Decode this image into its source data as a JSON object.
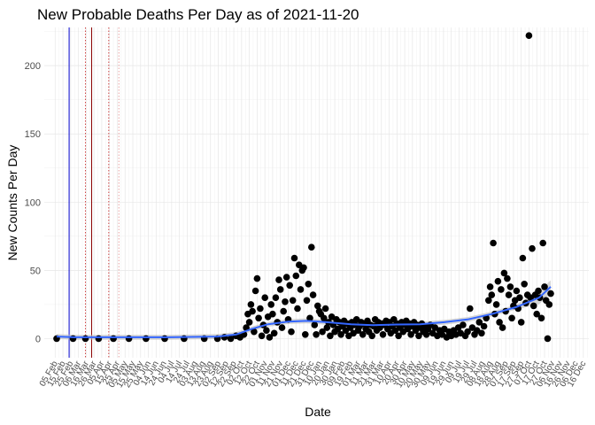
{
  "chart_data": {
    "type": "scatter",
    "title": "New Probable Deaths Per Day as of 2021-11-20",
    "xlabel": "Date",
    "ylabel": "New Counts Per Day",
    "ylim": [
      -14,
      228
    ],
    "yticks": [
      0,
      50,
      100,
      150,
      200
    ],
    "xlim": [
      "2020-01-22",
      "2021-12-23"
    ],
    "grid": true,
    "legend": "none",
    "colors": {
      "points": "#000000",
      "smooth": "#3366ff",
      "ribbon": "#bdbdbd",
      "vline_blue": "#0000cc",
      "vline_red": "#8b0000",
      "vline_dotted": "#cc4444"
    },
    "vlines": [
      {
        "date": "2020-02-23",
        "style": "solid",
        "color": "blue"
      },
      {
        "date": "2020-03-23",
        "style": "solid",
        "color": "red"
      },
      {
        "date": "2020-03-15",
        "style": "dotted",
        "color": "red"
      },
      {
        "date": "2020-04-14",
        "style": "dotted",
        "color": "red"
      },
      {
        "date": "2020-04-27",
        "style": "dotted",
        "color": "pink"
      }
    ],
    "x_tick_labels": [
      "05 Feb",
      "15 Feb",
      "25 Feb",
      "06 Mar",
      "16 Mar",
      "26 Mar",
      "05 Apr",
      "15 Apr",
      "25 Apr",
      "05 May",
      "15 May",
      "25 May",
      "04 Jun",
      "14 Jun",
      "24 Jun",
      "04 Jul",
      "14 Jul",
      "24 Jul",
      "03 Aug",
      "13 Aug",
      "23 Aug",
      "02 Sep",
      "12 Sep",
      "22 Sep",
      "02 Oct",
      "12 Oct",
      "22 Oct",
      "01 Nov",
      "11 Nov",
      "21 Nov",
      "01 Dec",
      "11 Dec",
      "21 Dec",
      "31 Dec",
      "10 Jan",
      "20 Jan",
      "30 Jan",
      "09 Feb",
      "19 Feb",
      "01 Mar",
      "11 Mar",
      "21 Mar",
      "31 Mar",
      "10 Apr",
      "20 Apr",
      "30 Apr",
      "10 May",
      "20 May",
      "30 May",
      "09 Jun",
      "19 Jun",
      "29 Jun",
      "09 Jul",
      "19 Jul",
      "29 Jul",
      "08 Aug",
      "18 Aug",
      "28 Aug",
      "07 Sep",
      "17 Sep",
      "27 Sep",
      "07 Oct",
      "17 Oct",
      "27 Oct",
      "06 Nov",
      "16 Nov",
      "26 Nov",
      "06 Dec",
      "16 Dec"
    ],
    "x_tick_dates": [
      "2020-02-05",
      "2020-02-15",
      "2020-02-25",
      "2020-03-06",
      "2020-03-16",
      "2020-03-26",
      "2020-04-05",
      "2020-04-15",
      "2020-04-25",
      "2020-05-05",
      "2020-05-15",
      "2020-05-25",
      "2020-06-04",
      "2020-06-14",
      "2020-06-24",
      "2020-07-04",
      "2020-07-14",
      "2020-07-24",
      "2020-08-03",
      "2020-08-13",
      "2020-08-23",
      "2020-09-02",
      "2020-09-12",
      "2020-09-22",
      "2020-10-02",
      "2020-10-12",
      "2020-10-22",
      "2020-11-01",
      "2020-11-11",
      "2020-11-21",
      "2020-12-01",
      "2020-12-11",
      "2020-12-21",
      "2020-12-31",
      "2021-01-10",
      "2021-01-20",
      "2021-01-30",
      "2021-02-09",
      "2021-02-19",
      "2021-03-01",
      "2021-03-11",
      "2021-03-21",
      "2021-03-31",
      "2021-04-10",
      "2021-04-20",
      "2021-04-30",
      "2021-05-10",
      "2021-05-20",
      "2021-05-30",
      "2021-06-09",
      "2021-06-19",
      "2021-06-29",
      "2021-07-09",
      "2021-07-19",
      "2021-07-29",
      "2021-08-08",
      "2021-08-18",
      "2021-08-28",
      "2021-09-07",
      "2021-09-17",
      "2021-09-27",
      "2021-10-07",
      "2021-10-17",
      "2021-10-27",
      "2021-11-06",
      "2021-11-16",
      "2021-11-26",
      "2021-12-06",
      "2021-12-16"
    ],
    "points": [
      [
        "2020-02-07",
        0
      ],
      [
        "2020-02-28",
        0
      ],
      [
        "2020-03-15",
        0
      ],
      [
        "2020-04-01",
        0
      ],
      [
        "2020-04-20",
        0
      ],
      [
        "2020-05-10",
        0
      ],
      [
        "2020-06-01",
        0
      ],
      [
        "2020-06-25",
        0
      ],
      [
        "2020-07-20",
        0
      ],
      [
        "2020-08-15",
        0
      ],
      [
        "2020-09-01",
        0
      ],
      [
        "2020-09-10",
        1
      ],
      [
        "2020-09-18",
        0
      ],
      [
        "2020-09-25",
        2
      ],
      [
        "2020-09-30",
        1
      ],
      [
        "2020-10-05",
        3
      ],
      [
        "2020-10-08",
        8
      ],
      [
        "2020-10-10",
        18
      ],
      [
        "2020-10-12",
        12
      ],
      [
        "2020-10-14",
        25
      ],
      [
        "2020-10-16",
        20
      ],
      [
        "2020-10-18",
        5
      ],
      [
        "2020-10-20",
        35
      ],
      [
        "2020-10-22",
        44
      ],
      [
        "2020-10-24",
        15
      ],
      [
        "2020-10-26",
        22
      ],
      [
        "2020-10-28",
        2
      ],
      [
        "2020-10-30",
        10
      ],
      [
        "2020-11-01",
        30
      ],
      [
        "2020-11-03",
        6
      ],
      [
        "2020-11-05",
        16
      ],
      [
        "2020-11-07",
        1
      ],
      [
        "2020-11-09",
        25
      ],
      [
        "2020-11-11",
        18
      ],
      [
        "2020-11-13",
        4
      ],
      [
        "2020-11-15",
        30
      ],
      [
        "2020-11-17",
        12
      ],
      [
        "2020-11-19",
        43
      ],
      [
        "2020-11-21",
        36
      ],
      [
        "2020-11-23",
        8
      ],
      [
        "2020-11-25",
        20
      ],
      [
        "2020-11-27",
        27
      ],
      [
        "2020-11-29",
        45
      ],
      [
        "2020-12-01",
        14
      ],
      [
        "2020-12-03",
        39
      ],
      [
        "2020-12-05",
        5
      ],
      [
        "2020-12-07",
        28
      ],
      [
        "2020-12-09",
        59
      ],
      [
        "2020-12-11",
        46
      ],
      [
        "2020-12-13",
        22
      ],
      [
        "2020-12-15",
        54
      ],
      [
        "2020-12-17",
        36
      ],
      [
        "2020-12-19",
        50
      ],
      [
        "2020-12-21",
        52
      ],
      [
        "2020-12-23",
        3
      ],
      [
        "2020-12-25",
        28
      ],
      [
        "2020-12-27",
        40
      ],
      [
        "2020-12-29",
        15
      ],
      [
        "2020-12-31",
        67
      ],
      [
        "2021-01-02",
        32
      ],
      [
        "2021-01-04",
        10
      ],
      [
        "2021-01-06",
        3
      ],
      [
        "2021-01-08",
        24
      ],
      [
        "2021-01-10",
        20
      ],
      [
        "2021-01-12",
        18
      ],
      [
        "2021-01-14",
        5
      ],
      [
        "2021-01-16",
        15
      ],
      [
        "2021-01-18",
        22
      ],
      [
        "2021-01-20",
        8
      ],
      [
        "2021-01-22",
        12
      ],
      [
        "2021-01-24",
        2
      ],
      [
        "2021-01-26",
        16
      ],
      [
        "2021-01-28",
        10
      ],
      [
        "2021-01-30",
        5
      ],
      [
        "2021-02-01",
        14
      ],
      [
        "2021-02-03",
        7
      ],
      [
        "2021-02-05",
        12
      ],
      [
        "2021-02-07",
        3
      ],
      [
        "2021-02-09",
        9
      ],
      [
        "2021-02-11",
        13
      ],
      [
        "2021-02-13",
        6
      ],
      [
        "2021-02-15",
        11
      ],
      [
        "2021-02-17",
        2
      ],
      [
        "2021-02-19",
        8
      ],
      [
        "2021-02-21",
        12
      ],
      [
        "2021-02-23",
        4
      ],
      [
        "2021-02-25",
        10
      ],
      [
        "2021-02-27",
        14
      ],
      [
        "2021-03-01",
        6
      ],
      [
        "2021-03-03",
        9
      ],
      [
        "2021-03-05",
        12
      ],
      [
        "2021-03-07",
        3
      ],
      [
        "2021-03-09",
        11
      ],
      [
        "2021-03-11",
        7
      ],
      [
        "2021-03-13",
        13
      ],
      [
        "2021-03-15",
        5
      ],
      [
        "2021-03-17",
        10
      ],
      [
        "2021-03-19",
        2
      ],
      [
        "2021-03-21",
        9
      ],
      [
        "2021-03-23",
        14
      ],
      [
        "2021-03-25",
        6
      ],
      [
        "2021-03-27",
        12
      ],
      [
        "2021-03-29",
        8
      ],
      [
        "2021-03-31",
        11
      ],
      [
        "2021-04-02",
        3
      ],
      [
        "2021-04-04",
        10
      ],
      [
        "2021-04-06",
        13
      ],
      [
        "2021-04-08",
        7
      ],
      [
        "2021-04-10",
        12
      ],
      [
        "2021-04-12",
        4
      ],
      [
        "2021-04-14",
        9
      ],
      [
        "2021-04-16",
        14
      ],
      [
        "2021-04-18",
        6
      ],
      [
        "2021-04-20",
        11
      ],
      [
        "2021-04-22",
        2
      ],
      [
        "2021-04-24",
        8
      ],
      [
        "2021-04-26",
        12
      ],
      [
        "2021-04-28",
        5
      ],
      [
        "2021-04-30",
        10
      ],
      [
        "2021-05-02",
        13
      ],
      [
        "2021-05-04",
        7
      ],
      [
        "2021-05-06",
        11
      ],
      [
        "2021-05-08",
        3
      ],
      [
        "2021-05-10",
        9
      ],
      [
        "2021-05-12",
        12
      ],
      [
        "2021-05-14",
        6
      ],
      [
        "2021-05-16",
        10
      ],
      [
        "2021-05-18",
        2
      ],
      [
        "2021-05-20",
        8
      ],
      [
        "2021-05-22",
        11
      ],
      [
        "2021-05-24",
        5
      ],
      [
        "2021-05-26",
        9
      ],
      [
        "2021-05-28",
        3
      ],
      [
        "2021-05-30",
        7
      ],
      [
        "2021-06-02",
        10
      ],
      [
        "2021-06-05",
        4
      ],
      [
        "2021-06-08",
        8
      ],
      [
        "2021-06-11",
        2
      ],
      [
        "2021-06-14",
        6
      ],
      [
        "2021-06-17",
        3
      ],
      [
        "2021-06-20",
        7
      ],
      [
        "2021-06-23",
        1
      ],
      [
        "2021-06-26",
        5
      ],
      [
        "2021-06-29",
        2
      ],
      [
        "2021-07-02",
        6
      ],
      [
        "2021-07-05",
        3
      ],
      [
        "2021-07-08",
        8
      ],
      [
        "2021-07-11",
        4
      ],
      [
        "2021-07-14",
        10
      ],
      [
        "2021-07-17",
        2
      ],
      [
        "2021-07-20",
        5
      ],
      [
        "2021-07-23",
        22
      ],
      [
        "2021-07-26",
        8
      ],
      [
        "2021-07-29",
        3
      ],
      [
        "2021-08-01",
        6
      ],
      [
        "2021-08-04",
        12
      ],
      [
        "2021-08-07",
        4
      ],
      [
        "2021-08-10",
        9
      ],
      [
        "2021-08-13",
        15
      ],
      [
        "2021-08-16",
        28
      ],
      [
        "2021-08-18",
        38
      ],
      [
        "2021-08-20",
        32
      ],
      [
        "2021-08-22",
        70
      ],
      [
        "2021-08-24",
        18
      ],
      [
        "2021-08-26",
        25
      ],
      [
        "2021-08-28",
        42
      ],
      [
        "2021-08-30",
        12
      ],
      [
        "2021-09-01",
        36
      ],
      [
        "2021-09-03",
        8
      ],
      [
        "2021-09-05",
        48
      ],
      [
        "2021-09-07",
        20
      ],
      [
        "2021-09-09",
        44
      ],
      [
        "2021-09-11",
        32
      ],
      [
        "2021-09-13",
        38
      ],
      [
        "2021-09-15",
        15
      ],
      [
        "2021-09-17",
        24
      ],
      [
        "2021-09-19",
        28
      ],
      [
        "2021-09-21",
        35
      ],
      [
        "2021-09-23",
        22
      ],
      [
        "2021-09-25",
        30
      ],
      [
        "2021-09-27",
        12
      ],
      [
        "2021-09-29",
        59
      ],
      [
        "2021-10-01",
        40
      ],
      [
        "2021-10-03",
        26
      ],
      [
        "2021-10-05",
        32
      ],
      [
        "2021-10-07",
        222
      ],
      [
        "2021-10-09",
        30
      ],
      [
        "2021-10-11",
        66
      ],
      [
        "2021-10-13",
        24
      ],
      [
        "2021-10-15",
        32
      ],
      [
        "2021-10-17",
        18
      ],
      [
        "2021-10-19",
        35
      ],
      [
        "2021-10-21",
        30
      ],
      [
        "2021-10-23",
        15
      ],
      [
        "2021-10-25",
        70
      ],
      [
        "2021-10-27",
        38
      ],
      [
        "2021-10-29",
        28
      ],
      [
        "2021-10-31",
        0
      ],
      [
        "2021-11-02",
        25
      ],
      [
        "2021-11-04",
        33
      ]
    ],
    "smooth_line": [
      [
        "2020-02-07",
        1.5
      ],
      [
        "2020-03-01",
        1
      ],
      [
        "2020-05-01",
        1
      ],
      [
        "2020-07-01",
        1
      ],
      [
        "2020-09-01",
        1.5
      ],
      [
        "2020-09-25",
        3
      ],
      [
        "2020-10-15",
        7
      ],
      [
        "2020-11-05",
        10.5
      ],
      [
        "2020-12-01",
        12.5
      ],
      [
        "2020-12-25",
        13
      ],
      [
        "2021-01-20",
        12
      ],
      [
        "2021-02-20",
        10.5
      ],
      [
        "2021-03-20",
        9.8
      ],
      [
        "2021-04-20",
        10.3
      ],
      [
        "2021-05-20",
        10.5
      ],
      [
        "2021-06-20",
        12
      ],
      [
        "2021-07-20",
        14
      ],
      [
        "2021-08-20",
        18
      ],
      [
        "2021-09-20",
        23
      ],
      [
        "2021-10-20",
        30
      ],
      [
        "2021-11-04",
        38
      ]
    ]
  }
}
